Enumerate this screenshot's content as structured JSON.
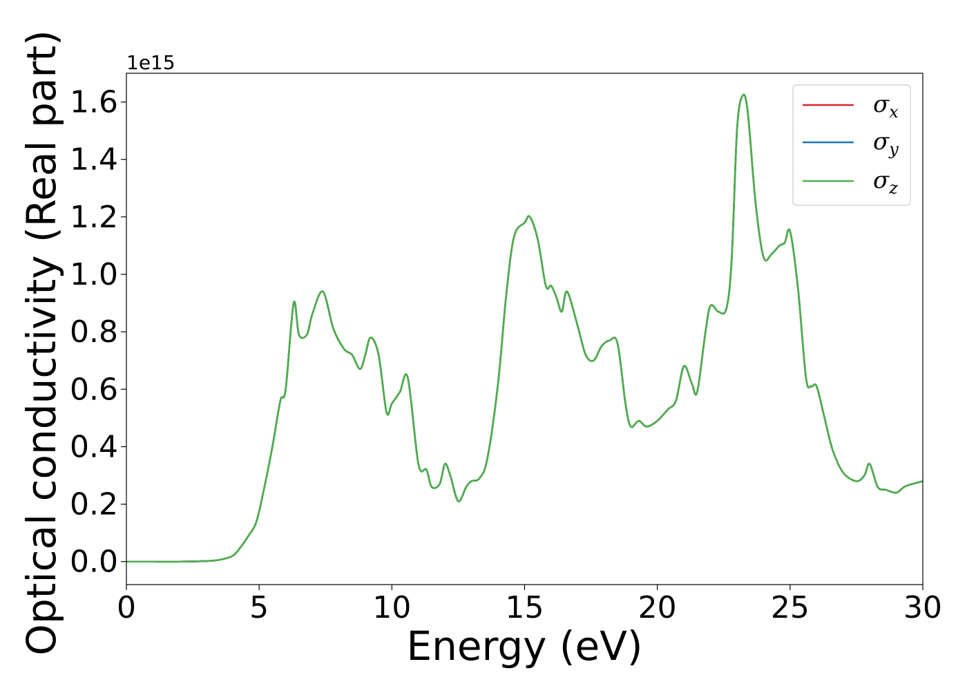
{
  "chart_data": {
    "type": "line",
    "title": "",
    "xlabel": "Energy (eV)",
    "ylabel": "Optical conductivity (Real part)",
    "y_offset_label": "1e15",
    "xlim": [
      0,
      30
    ],
    "ylim": [
      -0.08,
      1.7
    ],
    "x_ticks": [
      0,
      5,
      10,
      15,
      20,
      25,
      30
    ],
    "x_tick_labels": [
      "0",
      "5",
      "10",
      "15",
      "20",
      "25",
      "30"
    ],
    "y_ticks": [
      0.0,
      0.2,
      0.4,
      0.6,
      0.8,
      1.0,
      1.2,
      1.4,
      1.6
    ],
    "y_tick_labels": [
      "0.0",
      "0.2",
      "0.4",
      "0.6",
      "0.8",
      "1.0",
      "1.2",
      "1.4",
      "1.6"
    ],
    "grid": false,
    "legend_position": "top-right",
    "x": [
      0,
      1,
      2,
      3,
      3.5,
      4,
      4.3,
      4.6,
      4.9,
      5.2,
      5.5,
      5.8,
      6.0,
      6.3,
      6.5,
      6.8,
      7.0,
      7.4,
      7.8,
      8.2,
      8.5,
      8.8,
      9.0,
      9.2,
      9.5,
      9.8,
      10.0,
      10.3,
      10.6,
      11.0,
      11.3,
      11.5,
      11.8,
      12.0,
      12.2,
      12.5,
      12.8,
      13.0,
      13.3,
      13.6,
      14.0,
      14.3,
      14.6,
      15.0,
      15.2,
      15.5,
      15.8,
      16.0,
      16.2,
      16.4,
      16.6,
      17.0,
      17.3,
      17.6,
      17.9,
      18.2,
      18.5,
      18.8,
      19.0,
      19.3,
      19.6,
      20.0,
      20.4,
      20.7,
      21.0,
      21.3,
      21.5,
      21.8,
      22.0,
      22.3,
      22.6,
      22.8,
      23.0,
      23.2,
      23.4,
      23.7,
      24.0,
      24.3,
      24.6,
      24.8,
      25.0,
      25.3,
      25.6,
      25.8,
      26.0,
      26.3,
      26.6,
      27.0,
      27.5,
      27.8,
      28.0,
      28.3,
      28.6,
      29.0,
      29.3,
      29.6,
      30.0
    ],
    "series": [
      {
        "name": "σx",
        "color": "#d62728",
        "values": [
          0.0,
          0.0,
          0.0,
          0.002,
          0.006,
          0.02,
          0.05,
          0.09,
          0.14,
          0.26,
          0.4,
          0.56,
          0.6,
          0.9,
          0.79,
          0.79,
          0.86,
          0.94,
          0.81,
          0.74,
          0.72,
          0.67,
          0.72,
          0.78,
          0.72,
          0.52,
          0.55,
          0.59,
          0.64,
          0.34,
          0.32,
          0.26,
          0.27,
          0.34,
          0.3,
          0.21,
          0.26,
          0.28,
          0.29,
          0.36,
          0.62,
          0.92,
          1.13,
          1.18,
          1.2,
          1.12,
          0.96,
          0.96,
          0.92,
          0.87,
          0.94,
          0.82,
          0.72,
          0.7,
          0.75,
          0.77,
          0.76,
          0.55,
          0.47,
          0.49,
          0.47,
          0.49,
          0.53,
          0.56,
          0.68,
          0.62,
          0.59,
          0.79,
          0.89,
          0.87,
          0.88,
          1.05,
          1.5,
          1.62,
          1.57,
          1.25,
          1.06,
          1.07,
          1.1,
          1.11,
          1.15,
          0.95,
          0.64,
          0.61,
          0.61,
          0.5,
          0.39,
          0.31,
          0.28,
          0.3,
          0.34,
          0.26,
          0.25,
          0.24,
          0.26,
          0.27,
          0.28
        ]
      },
      {
        "name": "σy",
        "color": "#1f77b4",
        "values": [
          0.0,
          0.0,
          0.0,
          0.002,
          0.006,
          0.02,
          0.05,
          0.09,
          0.14,
          0.26,
          0.4,
          0.56,
          0.6,
          0.9,
          0.79,
          0.79,
          0.86,
          0.94,
          0.81,
          0.74,
          0.72,
          0.67,
          0.72,
          0.78,
          0.72,
          0.52,
          0.55,
          0.59,
          0.64,
          0.34,
          0.32,
          0.26,
          0.27,
          0.34,
          0.3,
          0.21,
          0.26,
          0.28,
          0.29,
          0.36,
          0.62,
          0.92,
          1.13,
          1.18,
          1.2,
          1.12,
          0.96,
          0.96,
          0.92,
          0.87,
          0.94,
          0.82,
          0.72,
          0.7,
          0.75,
          0.77,
          0.76,
          0.55,
          0.47,
          0.49,
          0.47,
          0.49,
          0.53,
          0.56,
          0.68,
          0.62,
          0.59,
          0.79,
          0.89,
          0.87,
          0.88,
          1.05,
          1.5,
          1.62,
          1.57,
          1.25,
          1.06,
          1.07,
          1.1,
          1.11,
          1.15,
          0.95,
          0.64,
          0.61,
          0.61,
          0.5,
          0.39,
          0.31,
          0.28,
          0.3,
          0.34,
          0.26,
          0.25,
          0.24,
          0.26,
          0.27,
          0.28
        ]
      },
      {
        "name": "σz",
        "color": "#4daf4a",
        "values": [
          0.0,
          0.0,
          0.0,
          0.002,
          0.006,
          0.02,
          0.05,
          0.09,
          0.14,
          0.26,
          0.4,
          0.56,
          0.6,
          0.9,
          0.79,
          0.79,
          0.86,
          0.94,
          0.81,
          0.74,
          0.72,
          0.67,
          0.72,
          0.78,
          0.72,
          0.52,
          0.55,
          0.59,
          0.64,
          0.34,
          0.32,
          0.26,
          0.27,
          0.34,
          0.3,
          0.21,
          0.26,
          0.28,
          0.29,
          0.36,
          0.62,
          0.92,
          1.13,
          1.18,
          1.2,
          1.12,
          0.96,
          0.96,
          0.92,
          0.87,
          0.94,
          0.82,
          0.72,
          0.7,
          0.75,
          0.77,
          0.76,
          0.55,
          0.47,
          0.49,
          0.47,
          0.49,
          0.53,
          0.56,
          0.68,
          0.62,
          0.59,
          0.79,
          0.89,
          0.87,
          0.88,
          1.05,
          1.5,
          1.62,
          1.57,
          1.25,
          1.06,
          1.07,
          1.1,
          1.11,
          1.15,
          0.95,
          0.64,
          0.61,
          0.61,
          0.5,
          0.39,
          0.31,
          0.28,
          0.3,
          0.34,
          0.26,
          0.25,
          0.24,
          0.26,
          0.27,
          0.28
        ]
      }
    ],
    "legend": [
      {
        "symbol": "σ",
        "sub": "x"
      },
      {
        "symbol": "σ",
        "sub": "y"
      },
      {
        "symbol": "σ",
        "sub": "z"
      }
    ]
  }
}
